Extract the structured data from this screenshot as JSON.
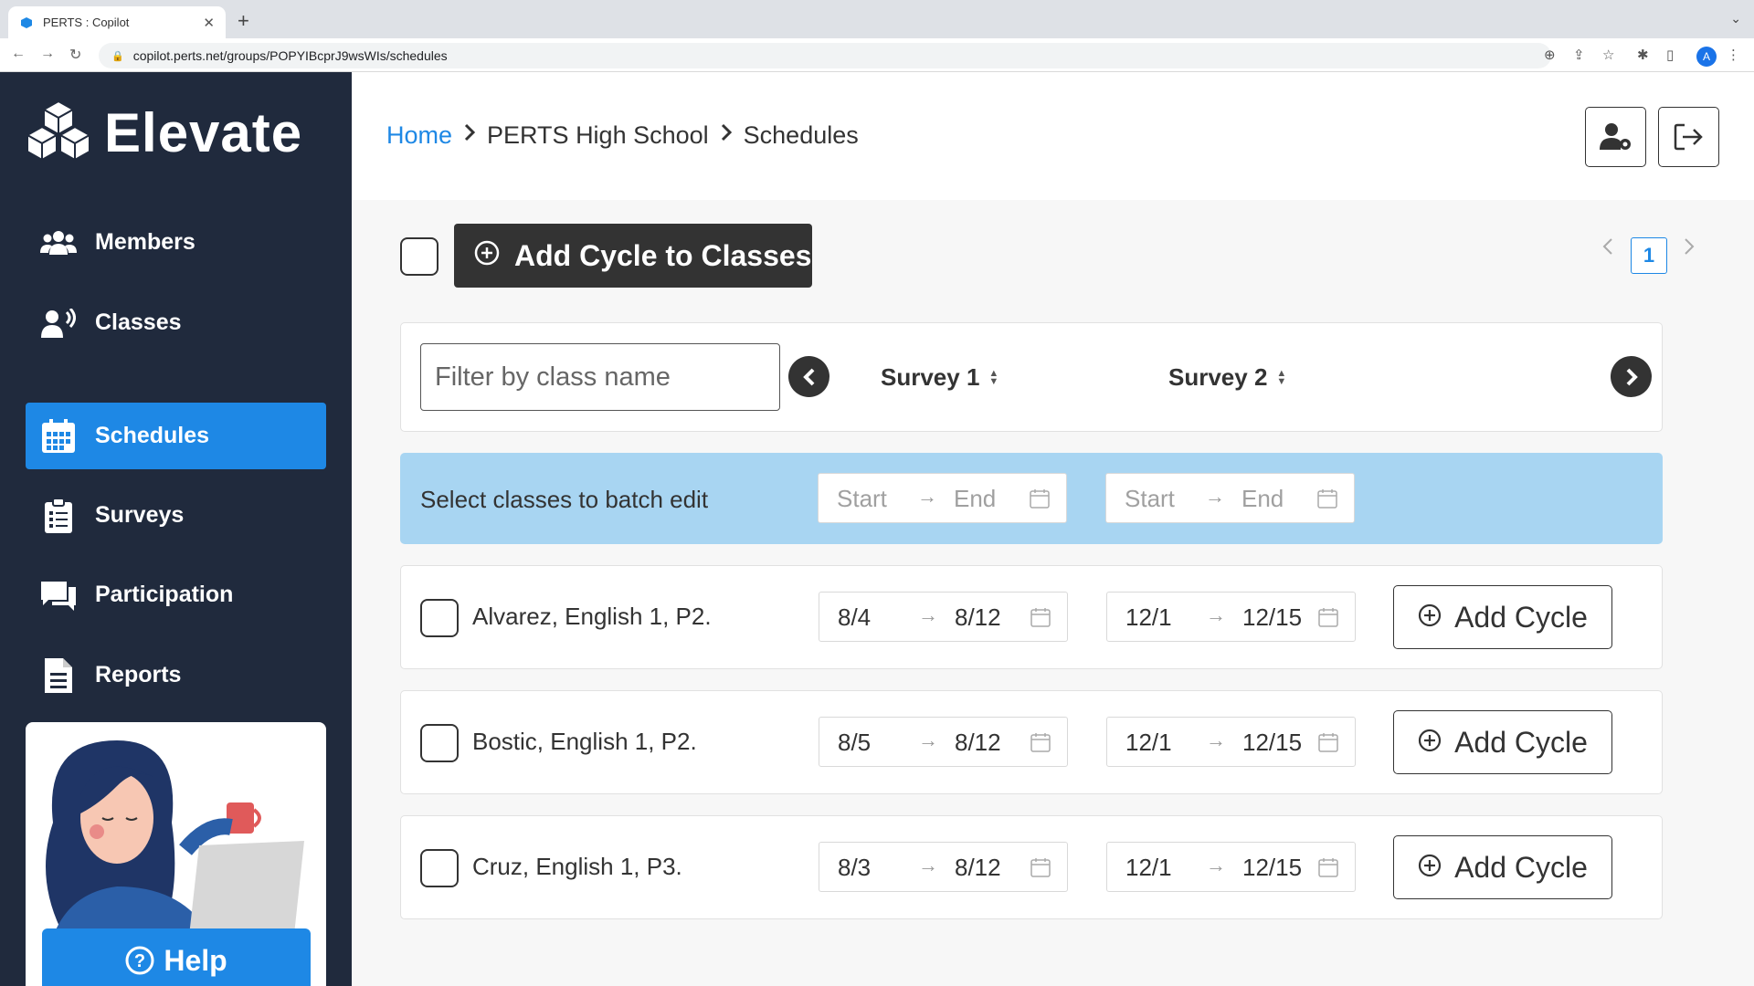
{
  "browser": {
    "tab_title": "PERTS : Copilot",
    "url": "copilot.perts.net/groups/POPYIBcprJ9wsWIs/schedules",
    "profile_initial": "A"
  },
  "sidebar": {
    "brand": "Elevate",
    "items": [
      {
        "label": "Members",
        "icon": "users-icon"
      },
      {
        "label": "Classes",
        "icon": "presenter-icon"
      },
      {
        "label": "Schedules",
        "icon": "calendar-icon",
        "active": true
      },
      {
        "label": "Surveys",
        "icon": "clipboard-icon"
      },
      {
        "label": "Participation",
        "icon": "chat-icon"
      },
      {
        "label": "Reports",
        "icon": "document-icon"
      }
    ],
    "help_label": "Help"
  },
  "header": {
    "breadcrumbs": [
      "Home",
      "PERTS High School",
      "Schedules"
    ]
  },
  "toolbar": {
    "add_cycle_to_classes": "Add Cycle to Classes",
    "page_number": "1"
  },
  "filter": {
    "placeholder": "Filter by class name",
    "survey1": "Survey 1",
    "survey2": "Survey 2"
  },
  "batch": {
    "label": "Select classes to batch edit",
    "start_placeholder": "Start",
    "end_placeholder": "End"
  },
  "classes": [
    {
      "name": "Alvarez, English 1, P2.",
      "s1_start": "8/4",
      "s1_end": "8/12",
      "s2_start": "12/1",
      "s2_end": "12/15"
    },
    {
      "name": "Bostic, English 1, P2.",
      "s1_start": "8/5",
      "s1_end": "8/12",
      "s2_start": "12/1",
      "s2_end": "12/15"
    },
    {
      "name": "Cruz, English 1, P3.",
      "s1_start": "8/3",
      "s1_end": "8/12",
      "s2_start": "12/1",
      "s2_end": "12/15"
    }
  ],
  "add_cycle_label": "Add Cycle"
}
